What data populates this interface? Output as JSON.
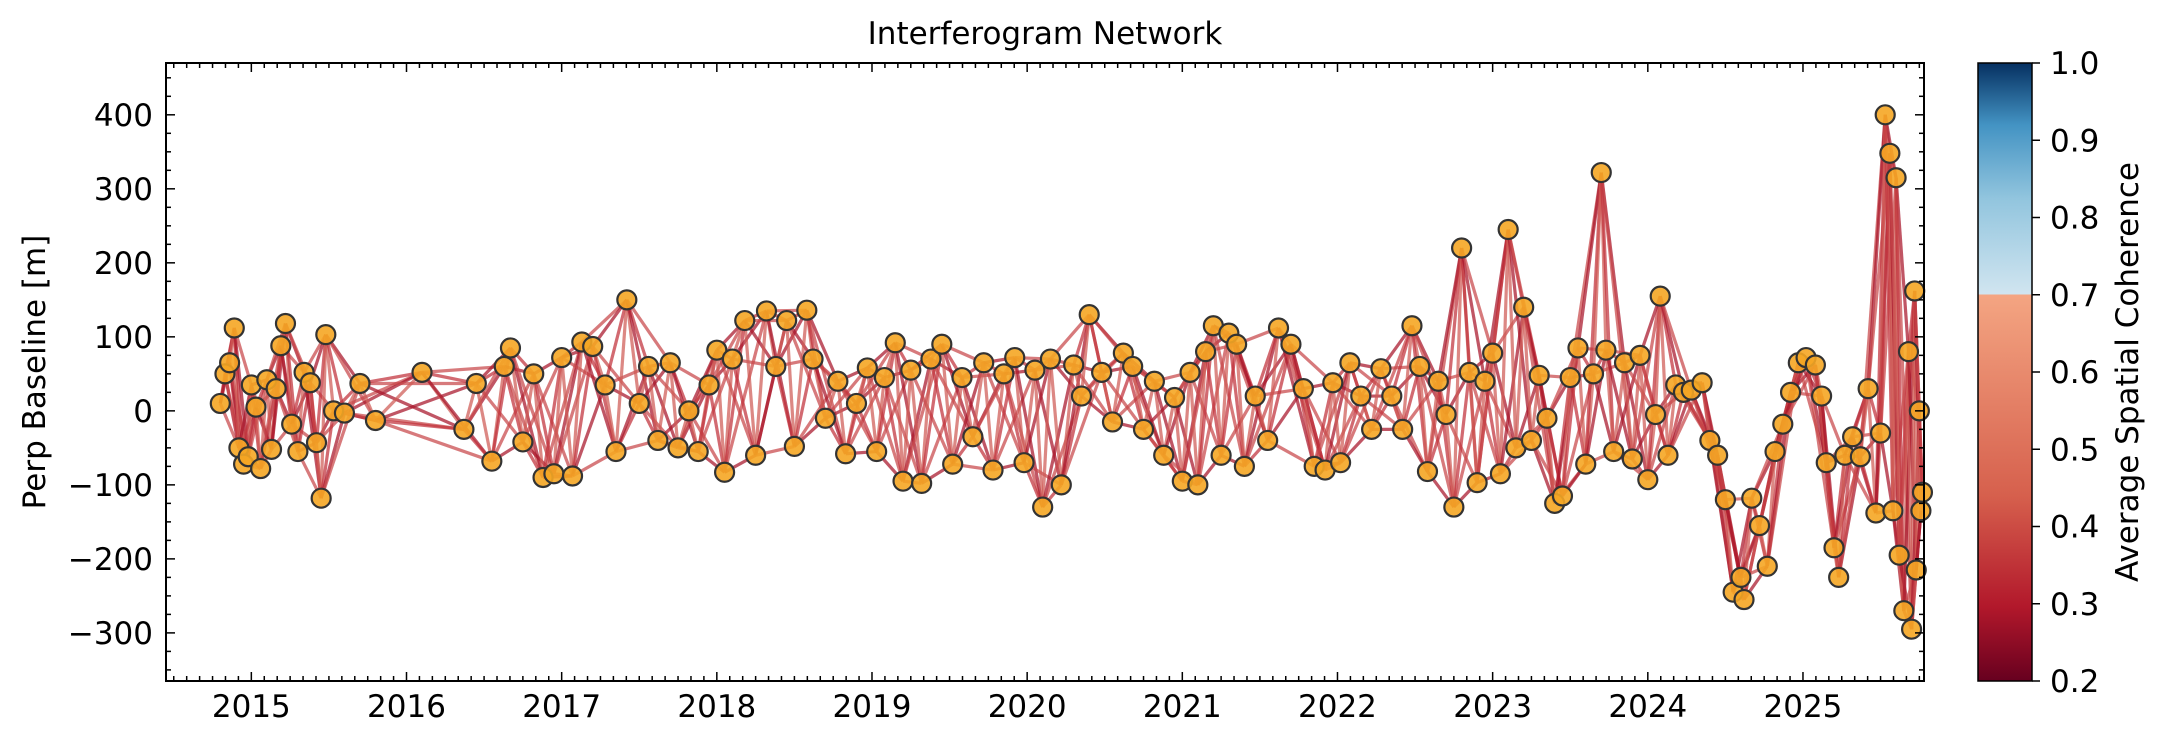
{
  "chart_data": {
    "type": "scatter",
    "title": "Interferogram Network",
    "xlabel": "",
    "ylabel": "Perp Baseline [m]",
    "xlim": [
      2014.45,
      2025.78
    ],
    "ylim": [
      -365,
      470
    ],
    "x_ticks": [
      2015,
      2016,
      2017,
      2018,
      2019,
      2020,
      2021,
      2022,
      2023,
      2024,
      2025
    ],
    "x_tick_labels": [
      "2015",
      "2016",
      "2017",
      "2018",
      "2019",
      "2020",
      "2021",
      "2022",
      "2023",
      "2024",
      "2025"
    ],
    "y_ticks": [
      -300,
      -200,
      -100,
      0,
      100,
      200,
      300,
      400
    ],
    "y_tick_labels": [
      "−300",
      "−200",
      "−100",
      "0",
      "100",
      "200",
      "300",
      "400"
    ],
    "grid": false,
    "colorbar": {
      "label": "Average Spatial Coherence",
      "range": [
        0.2,
        1.0
      ],
      "ticks": [
        0.2,
        0.3,
        0.4,
        0.5,
        0.6,
        0.7,
        0.8,
        0.9,
        1.0
      ],
      "tick_labels": [
        "0.2",
        "0.3",
        "0.4",
        "0.5",
        "0.6",
        "0.7",
        "0.8",
        "0.9",
        "1.0"
      ],
      "colormap": "RdBu",
      "color_low": "#67001f",
      "color_mid_low": "#f4a582",
      "color_mid_high": "#d1e5f0",
      "color_high": "#053061"
    },
    "marker_color": "#f5a623",
    "marker_edge_color": "#333333",
    "edge_color": "#c8464a",
    "acquisitions": [
      [
        2014.8,
        10
      ],
      [
        2014.83,
        50
      ],
      [
        2014.86,
        65
      ],
      [
        2014.89,
        112
      ],
      [
        2014.92,
        -50
      ],
      [
        2014.95,
        -72
      ],
      [
        2014.98,
        -62
      ],
      [
        2015.0,
        35
      ],
      [
        2015.03,
        5
      ],
      [
        2015.06,
        -78
      ],
      [
        2015.1,
        42
      ],
      [
        2015.13,
        -52
      ],
      [
        2015.16,
        30
      ],
      [
        2015.19,
        88
      ],
      [
        2015.22,
        118
      ],
      [
        2015.26,
        -18
      ],
      [
        2015.3,
        -55
      ],
      [
        2015.34,
        52
      ],
      [
        2015.38,
        38
      ],
      [
        2015.42,
        -43
      ],
      [
        2015.45,
        -118
      ],
      [
        2015.48,
        103
      ],
      [
        2015.53,
        0
      ],
      [
        2015.6,
        -3
      ],
      [
        2015.7,
        37
      ],
      [
        2015.8,
        -13
      ],
      [
        2016.1,
        52
      ],
      [
        2016.37,
        -25
      ],
      [
        2016.45,
        37
      ],
      [
        2016.55,
        -68
      ],
      [
        2016.63,
        60
      ],
      [
        2016.67,
        85
      ],
      [
        2016.75,
        -42
      ],
      [
        2016.82,
        50
      ],
      [
        2016.88,
        -90
      ],
      [
        2016.95,
        -85
      ],
      [
        2017.0,
        72
      ],
      [
        2017.07,
        -88
      ],
      [
        2017.13,
        93
      ],
      [
        2017.2,
        87
      ],
      [
        2017.28,
        35
      ],
      [
        2017.35,
        -55
      ],
      [
        2017.42,
        150
      ],
      [
        2017.5,
        10
      ],
      [
        2017.56,
        60
      ],
      [
        2017.62,
        -40
      ],
      [
        2017.7,
        65
      ],
      [
        2017.75,
        -50
      ],
      [
        2017.82,
        0
      ],
      [
        2017.88,
        -55
      ],
      [
        2017.95,
        35
      ],
      [
        2018.0,
        82
      ],
      [
        2018.05,
        -83
      ],
      [
        2018.1,
        70
      ],
      [
        2018.18,
        122
      ],
      [
        2018.25,
        -60
      ],
      [
        2018.32,
        135
      ],
      [
        2018.38,
        60
      ],
      [
        2018.45,
        122
      ],
      [
        2018.5,
        -48
      ],
      [
        2018.58,
        136
      ],
      [
        2018.62,
        70
      ],
      [
        2018.7,
        -10
      ],
      [
        2018.78,
        40
      ],
      [
        2018.83,
        -58
      ],
      [
        2018.9,
        10
      ],
      [
        2018.97,
        58
      ],
      [
        2019.03,
        -55
      ],
      [
        2019.08,
        45
      ],
      [
        2019.15,
        92
      ],
      [
        2019.2,
        -95
      ],
      [
        2019.25,
        55
      ],
      [
        2019.32,
        -98
      ],
      [
        2019.38,
        70
      ],
      [
        2019.45,
        90
      ],
      [
        2019.52,
        -72
      ],
      [
        2019.58,
        45
      ],
      [
        2019.65,
        -35
      ],
      [
        2019.72,
        65
      ],
      [
        2019.78,
        -80
      ],
      [
        2019.85,
        50
      ],
      [
        2019.92,
        72
      ],
      [
        2019.98,
        -70
      ],
      [
        2020.05,
        55
      ],
      [
        2020.1,
        -130
      ],
      [
        2020.15,
        70
      ],
      [
        2020.22,
        -100
      ],
      [
        2020.3,
        62
      ],
      [
        2020.35,
        20
      ],
      [
        2020.4,
        130
      ],
      [
        2020.48,
        52
      ],
      [
        2020.55,
        -15
      ],
      [
        2020.62,
        78
      ],
      [
        2020.68,
        60
      ],
      [
        2020.75,
        -25
      ],
      [
        2020.82,
        40
      ],
      [
        2020.88,
        -60
      ],
      [
        2020.95,
        18
      ],
      [
        2021.0,
        -95
      ],
      [
        2021.05,
        52
      ],
      [
        2021.1,
        -100
      ],
      [
        2021.15,
        80
      ],
      [
        2021.2,
        115
      ],
      [
        2021.25,
        -60
      ],
      [
        2021.3,
        105
      ],
      [
        2021.35,
        90
      ],
      [
        2021.4,
        -75
      ],
      [
        2021.47,
        20
      ],
      [
        2021.55,
        -40
      ],
      [
        2021.62,
        112
      ],
      [
        2021.7,
        90
      ],
      [
        2021.78,
        30
      ],
      [
        2021.85,
        -75
      ],
      [
        2021.92,
        -80
      ],
      [
        2021.97,
        38
      ],
      [
        2022.02,
        -70
      ],
      [
        2022.08,
        65
      ],
      [
        2022.15,
        20
      ],
      [
        2022.22,
        -25
      ],
      [
        2022.28,
        57
      ],
      [
        2022.35,
        20
      ],
      [
        2022.42,
        -25
      ],
      [
        2022.48,
        115
      ],
      [
        2022.53,
        60
      ],
      [
        2022.58,
        -82
      ],
      [
        2022.65,
        40
      ],
      [
        2022.7,
        -5
      ],
      [
        2022.75,
        -130
      ],
      [
        2022.8,
        220
      ],
      [
        2022.85,
        52
      ],
      [
        2022.9,
        -97
      ],
      [
        2022.95,
        40
      ],
      [
        2023.0,
        78
      ],
      [
        2023.05,
        -85
      ],
      [
        2023.1,
        245
      ],
      [
        2023.15,
        -50
      ],
      [
        2023.2,
        140
      ],
      [
        2023.25,
        -40
      ],
      [
        2023.3,
        48
      ],
      [
        2023.35,
        -10
      ],
      [
        2023.4,
        -125
      ],
      [
        2023.45,
        -115
      ],
      [
        2023.5,
        45
      ],
      [
        2023.55,
        85
      ],
      [
        2023.6,
        -72
      ],
      [
        2023.65,
        50
      ],
      [
        2023.7,
        322
      ],
      [
        2023.73,
        82
      ],
      [
        2023.78,
        -55
      ],
      [
        2023.85,
        65
      ],
      [
        2023.9,
        -65
      ],
      [
        2023.95,
        75
      ],
      [
        2024.0,
        -93
      ],
      [
        2024.05,
        -5
      ],
      [
        2024.08,
        155
      ],
      [
        2024.13,
        -60
      ],
      [
        2024.18,
        35
      ],
      [
        2024.23,
        25
      ],
      [
        2024.28,
        28
      ],
      [
        2024.35,
        38
      ],
      [
        2024.4,
        -40
      ],
      [
        2024.45,
        -60
      ],
      [
        2024.5,
        -120
      ],
      [
        2024.55,
        -245
      ],
      [
        2024.6,
        -225
      ],
      [
        2024.62,
        -255
      ],
      [
        2024.67,
        -118
      ],
      [
        2024.72,
        -155
      ],
      [
        2024.77,
        -210
      ],
      [
        2024.82,
        -55
      ],
      [
        2024.87,
        -18
      ],
      [
        2024.92,
        25
      ],
      [
        2024.97,
        65
      ],
      [
        2025.02,
        72
      ],
      [
        2025.08,
        62
      ],
      [
        2025.12,
        20
      ],
      [
        2025.15,
        -70
      ],
      [
        2025.2,
        -185
      ],
      [
        2025.23,
        -225
      ],
      [
        2025.27,
        -60
      ],
      [
        2025.32,
        -35
      ],
      [
        2025.37,
        -62
      ],
      [
        2025.42,
        30
      ],
      [
        2025.47,
        -138
      ],
      [
        2025.5,
        -30
      ],
      [
        2025.53,
        400
      ],
      [
        2025.56,
        348
      ],
      [
        2025.58,
        -135
      ],
      [
        2025.6,
        315
      ],
      [
        2025.62,
        -195
      ],
      [
        2025.65,
        -270
      ],
      [
        2025.68,
        80
      ],
      [
        2025.7,
        -295
      ],
      [
        2025.72,
        162
      ],
      [
        2025.73,
        -215
      ],
      [
        2025.75,
        0
      ],
      [
        2025.76,
        -135
      ],
      [
        2025.77,
        -110
      ]
    ]
  }
}
